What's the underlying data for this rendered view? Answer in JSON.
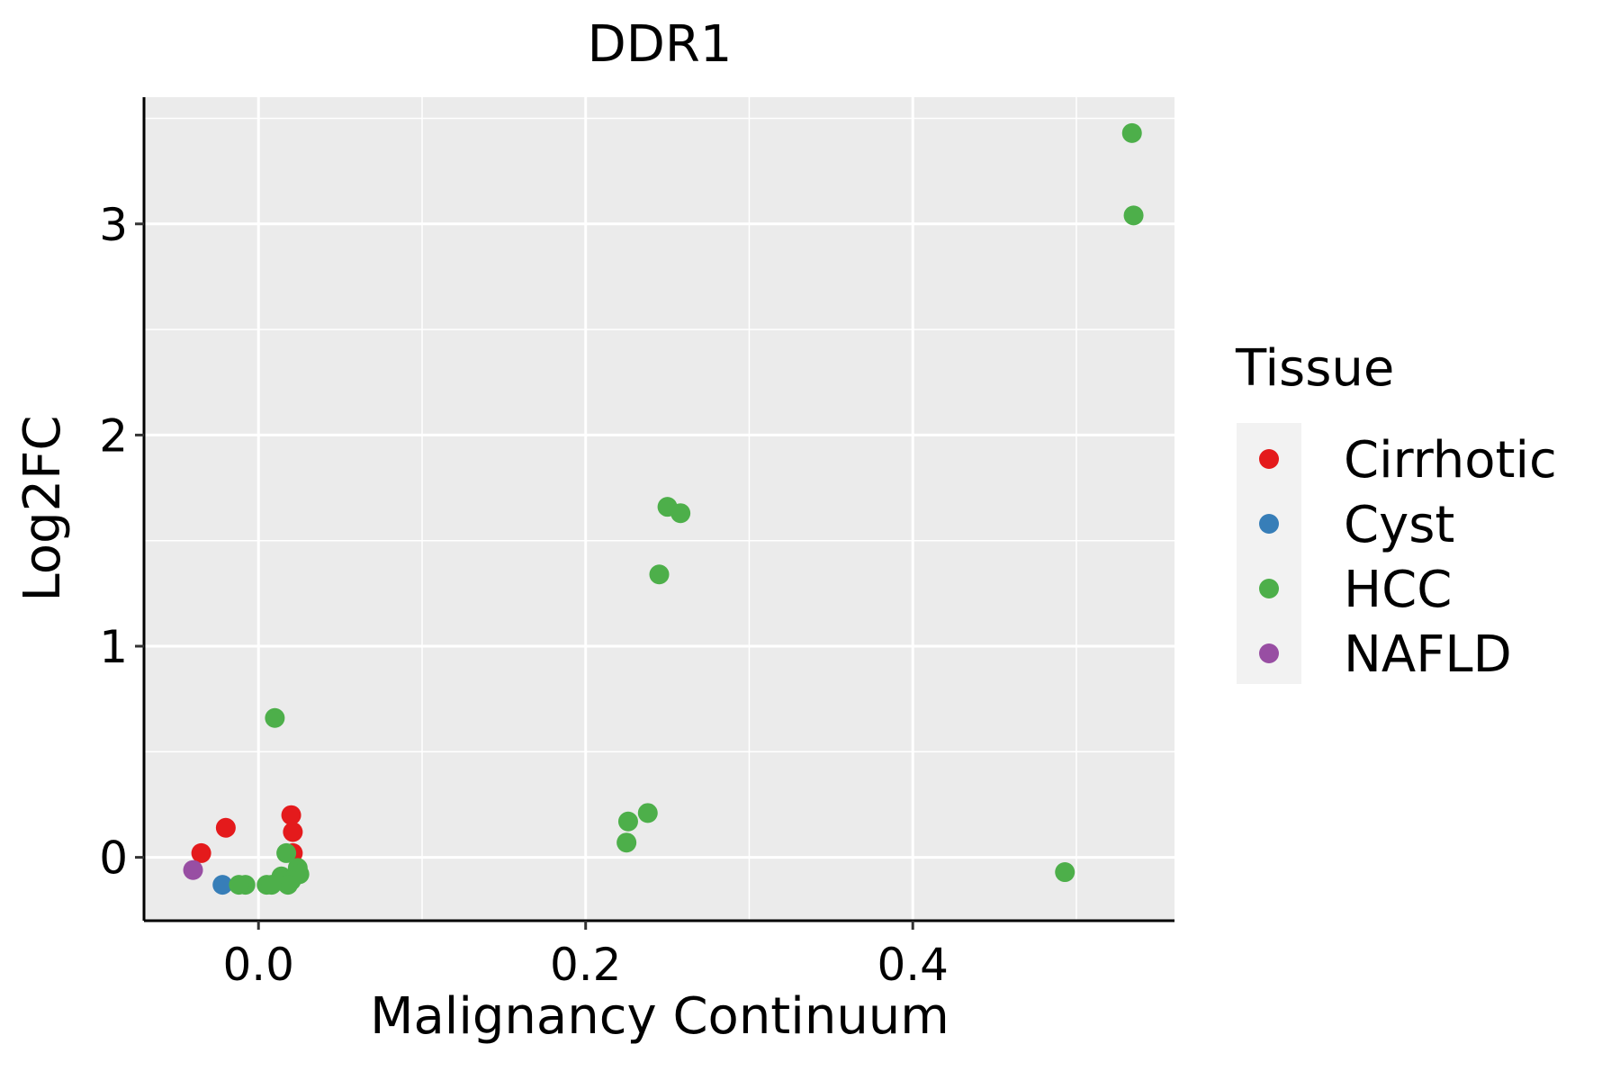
{
  "chart_data": {
    "type": "scatter",
    "title": "DDR1",
    "xlabel": "Malignancy Continuum",
    "ylabel": "Log2FC",
    "xlim": [
      -0.07,
      0.56
    ],
    "ylim": [
      -0.3,
      3.6
    ],
    "x_ticks": [
      0.0,
      0.2,
      0.4
    ],
    "x_tick_labels": [
      "0.0",
      "0.2",
      "0.4"
    ],
    "y_ticks": [
      0,
      1,
      2,
      3
    ],
    "y_tick_labels": [
      "0",
      "1",
      "2",
      "3"
    ],
    "grid": true,
    "legend": {
      "title": "Tissue",
      "placement": "right",
      "entries": [
        {
          "label": "Cirrhotic",
          "color": "#E41A1C"
        },
        {
          "label": "Cyst",
          "color": "#377EB8"
        },
        {
          "label": "HCC",
          "color": "#4DAF4A"
        },
        {
          "label": "NAFLD",
          "color": "#984EA3"
        }
      ]
    },
    "series": [
      {
        "name": "Cirrhotic",
        "color": "#E41A1C",
        "points": [
          {
            "x": -0.035,
            "y": 0.02
          },
          {
            "x": -0.02,
            "y": 0.14
          },
          {
            "x": 0.02,
            "y": 0.2
          },
          {
            "x": 0.021,
            "y": 0.12
          },
          {
            "x": 0.021,
            "y": 0.02
          }
        ]
      },
      {
        "name": "Cyst",
        "color": "#377EB8",
        "points": [
          {
            "x": -0.022,
            "y": -0.13
          }
        ]
      },
      {
        "name": "HCC",
        "color": "#4DAF4A",
        "points": [
          {
            "x": 0.534,
            "y": 3.43
          },
          {
            "x": 0.535,
            "y": 3.04
          },
          {
            "x": 0.25,
            "y": 1.66
          },
          {
            "x": 0.258,
            "y": 1.63
          },
          {
            "x": 0.245,
            "y": 1.34
          },
          {
            "x": 0.01,
            "y": 0.66
          },
          {
            "x": 0.238,
            "y": 0.21
          },
          {
            "x": 0.226,
            "y": 0.17
          },
          {
            "x": 0.225,
            "y": 0.07
          },
          {
            "x": 0.493,
            "y": -0.07
          },
          {
            "x": 0.017,
            "y": 0.02
          },
          {
            "x": 0.024,
            "y": -0.05
          },
          {
            "x": 0.025,
            "y": -0.08
          },
          {
            "x": 0.014,
            "y": -0.09
          },
          {
            "x": 0.02,
            "y": -0.11
          },
          {
            "x": 0.018,
            "y": -0.13
          },
          {
            "x": 0.005,
            "y": -0.13
          },
          {
            "x": 0.008,
            "y": -0.13
          },
          {
            "x": -0.008,
            "y": -0.13
          },
          {
            "x": -0.012,
            "y": -0.13
          }
        ]
      },
      {
        "name": "NAFLD",
        "color": "#984EA3",
        "points": [
          {
            "x": -0.04,
            "y": -0.06
          }
        ]
      }
    ]
  }
}
